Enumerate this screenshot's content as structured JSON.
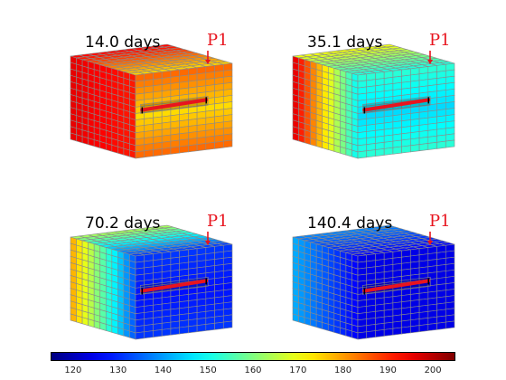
{
  "panels": [
    {
      "time_label": "14.0 days",
      "probe_label": "P1",
      "temperature_field": "hot"
    },
    {
      "time_label": "35.1 days",
      "probe_label": "P1",
      "temperature_field": "warm"
    },
    {
      "time_label": "70.2 days",
      "probe_label": "P1",
      "temperature_field": "cooling"
    },
    {
      "time_label": "140.4 days",
      "probe_label": "P1",
      "temperature_field": "cold"
    }
  ],
  "colorbar": {
    "colormap": "jet",
    "min": 115,
    "max": 205,
    "ticks": [
      "120",
      "130",
      "140",
      "150",
      "160",
      "170",
      "180",
      "190",
      "200"
    ]
  },
  "colors": {
    "probe_marker": "#e8141e",
    "fracture": "#e8141e",
    "grid_lines": "#8a8a8a"
  }
}
